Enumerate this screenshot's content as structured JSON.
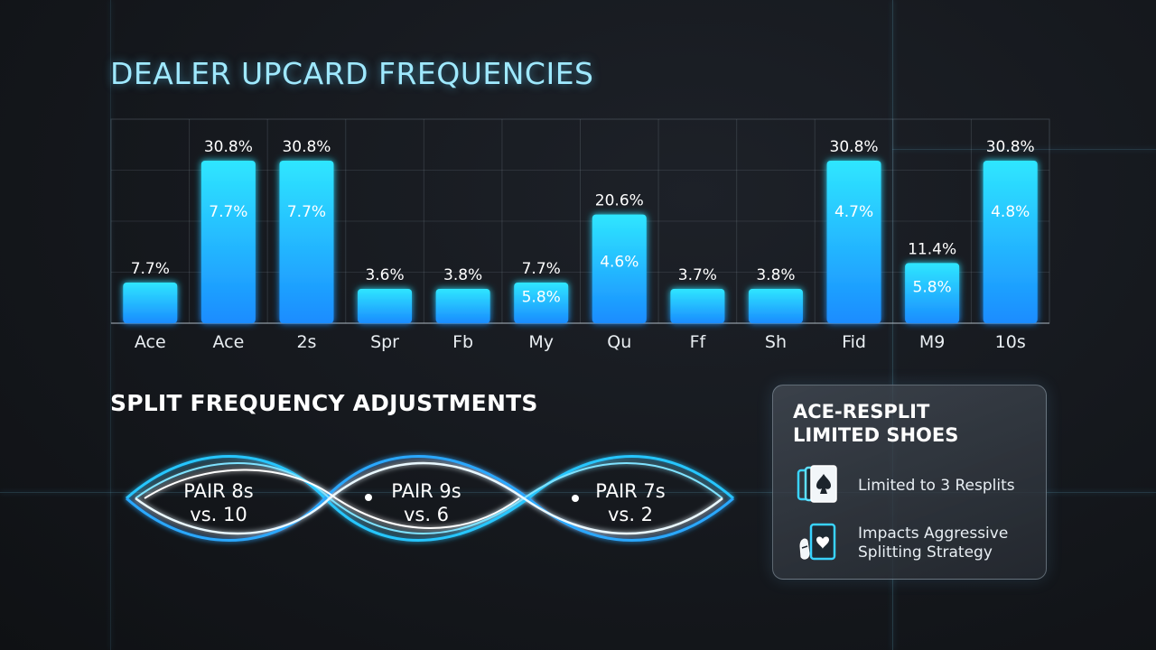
{
  "chart_data": {
    "type": "bar",
    "title": "DEALER UPCARD FREQUENCIES",
    "categories": [
      "Ace",
      "Ace",
      "2s",
      "Spr",
      "Fb",
      "My",
      "Qu",
      "Ff",
      "Sh",
      "Fid",
      "M9",
      "10s"
    ],
    "values": [
      7.7,
      30.8,
      30.8,
      3.6,
      3.8,
      7.7,
      20.6,
      3.7,
      3.8,
      30.8,
      11.4,
      30.8
    ],
    "value_labels": [
      "7.7%",
      "30.8%",
      "30.8%",
      "3.6%",
      "3.8%",
      "7.7%",
      "20.6%",
      "3.7%",
      "3.8%",
      "30.8%",
      "11.4%",
      "30.8%"
    ],
    "inner_labels": [
      "",
      "7.7%",
      "7.7%",
      "",
      "",
      "5.8%",
      "4.6%",
      "",
      "",
      "4.7%",
      "5.8%",
      "4.8%"
    ],
    "xlabel": "",
    "ylabel": "",
    "grid": true,
    "colors": {
      "bar_top": "#2fe6ff",
      "bar_bottom": "#1a8cff"
    }
  },
  "split_section": {
    "title": "SPLIT FREQUENCY ADJUSTMENTS",
    "pairs": [
      {
        "line1": "PAIR 8s",
        "line2": "vs. 10"
      },
      {
        "line1": "PAIR 9s",
        "line2": "vs. 6"
      },
      {
        "line1": "PAIR 7s",
        "line2": "vs. 2"
      }
    ]
  },
  "info_card": {
    "title_line1": "ACE-RESPLIT",
    "title_line2": "LIMITED SHOES",
    "items": [
      {
        "icon": "playing-cards-icon",
        "line1": "Limited to 3 Resplits",
        "line2": ""
      },
      {
        "icon": "hand-cards-icon",
        "line1": "Impacts Aggressive",
        "line2": "Splitting Strategy"
      }
    ]
  }
}
